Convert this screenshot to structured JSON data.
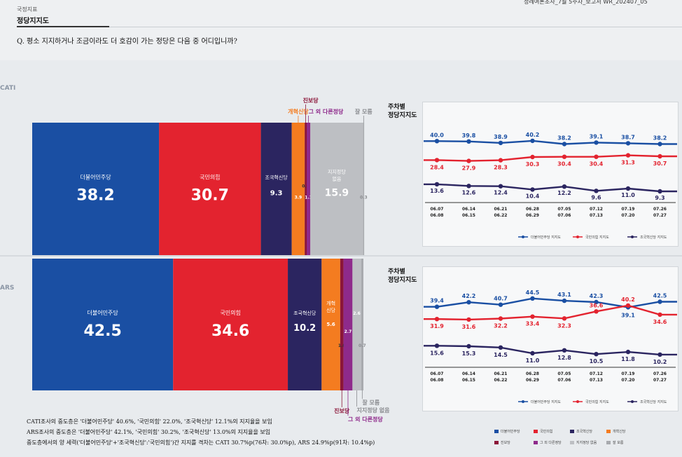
{
  "header": {
    "doc_ref": "정례여론조사_7월 5주차_보고서    WR_202407_05",
    "section_label": "국정지표",
    "section_title": "정당지지도",
    "question": "Q. 평소 지지하거나 조금이라도 더 호감이 가는 정당은 다음 중 어디입니까?"
  },
  "modes": {
    "cati": "CATI",
    "ars": "ARS"
  },
  "colors": {
    "democratic": "#1a4fa3",
    "ppp": "#e3232f",
    "rebuilding": "#2b2560",
    "reform": "#f47c20",
    "progressive": "#8b1538",
    "other": "#8e2a8b",
    "none": "#bdbfc3",
    "unknown": "#a8aaae"
  },
  "chart_data": [
    {
      "type": "bar",
      "stacked": true,
      "orientation": "horizontal-share",
      "mode": "CATI",
      "segments": [
        {
          "name": "더불어민주당",
          "value": 38.2,
          "color_key": "democratic"
        },
        {
          "name": "국민의힘",
          "value": 30.7,
          "color_key": "ppp"
        },
        {
          "name": "조국혁신당",
          "value": 9.3,
          "color_key": "rebuilding"
        },
        {
          "name": "개혁신당",
          "value": 3.9,
          "color_key": "reform"
        },
        {
          "name": "진보당",
          "value": 0.6,
          "color_key": "progressive"
        },
        {
          "name": "그 외 다른정당",
          "value": 1.1,
          "color_key": "other"
        },
        {
          "name": "지지정당 없음",
          "value": 15.9,
          "color_key": "none"
        },
        {
          "name": "잘 모름",
          "value": 0.3,
          "color_key": "unknown"
        }
      ]
    },
    {
      "type": "line",
      "title": "주차별 정당지지도",
      "mode": "CATI",
      "x": [
        "06.07\n06.08",
        "06.14\n06.15",
        "06.21\n06.22",
        "06.28\n06.29",
        "07.05\n07.06",
        "07.12\n07.13",
        "07.19\n07.20",
        "07.26\n07.27"
      ],
      "series": [
        {
          "name": "더불어민주당 지지도",
          "color_key": "democratic",
          "values": [
            40.0,
            39.8,
            38.9,
            40.2,
            38.2,
            39.1,
            38.7,
            38.2
          ]
        },
        {
          "name": "국민의힘 지지도",
          "color_key": "ppp",
          "values": [
            28.4,
            27.9,
            28.3,
            30.3,
            30.4,
            30.4,
            31.3,
            30.7
          ]
        },
        {
          "name": "조국혁신당 지지도",
          "color_key": "rebuilding",
          "values": [
            13.6,
            12.6,
            12.4,
            10.4,
            12.2,
            9.6,
            11.0,
            9.3
          ]
        }
      ]
    },
    {
      "type": "bar",
      "stacked": true,
      "orientation": "horizontal-share",
      "mode": "ARS",
      "segments": [
        {
          "name": "더불어민주당",
          "value": 42.5,
          "color_key": "democratic"
        },
        {
          "name": "국민의힘",
          "value": 34.6,
          "color_key": "ppp"
        },
        {
          "name": "조국혁신당",
          "value": 10.2,
          "color_key": "rebuilding"
        },
        {
          "name": "개혁신당",
          "value": 5.6,
          "color_key": "reform"
        },
        {
          "name": "진보당",
          "value": 1.0,
          "color_key": "progressive"
        },
        {
          "name": "그 외 다른정당",
          "value": 2.7,
          "color_key": "other"
        },
        {
          "name": "지지정당 없음",
          "value": 2.6,
          "color_key": "none"
        },
        {
          "name": "잘 모름",
          "value": 0.7,
          "color_key": "unknown"
        }
      ]
    },
    {
      "type": "line",
      "title": "주차별 정당지지도",
      "mode": "ARS",
      "x": [
        "06.07\n06.08",
        "06.14\n06.15",
        "06.21\n06.22",
        "06.28\n06.29",
        "07.05\n07.06",
        "07.12\n07.13",
        "07.19\n07.20",
        "07.26\n07.27"
      ],
      "series": [
        {
          "name": "더불어민주당 지지도",
          "color_key": "democratic",
          "values": [
            39.4,
            42.2,
            40.7,
            44.5,
            43.1,
            42.3,
            39.1,
            42.5
          ]
        },
        {
          "name": "국민의힘 지지도",
          "color_key": "ppp",
          "values": [
            31.9,
            31.6,
            32.2,
            33.4,
            32.3,
            36.6,
            40.2,
            34.6
          ]
        },
        {
          "name": "조국혁신당 지지도",
          "color_key": "rebuilding",
          "values": [
            15.6,
            15.3,
            14.5,
            11.0,
            12.8,
            10.5,
            11.8,
            10.2
          ]
        }
      ]
    }
  ],
  "notes": [
    "CATI조사의 중도층은 '더불어민주당' 40.6%, '국민의힘' 22.0%, '조국혁신당' 12.1%의 지지율을 보임",
    "ARS조사의 중도층은 '더불어민주당' 42.1%, '국민의힘' 30.2%, '조국혁신당' 13.0%의 지지율을 보임",
    "중도층에서의 양 세력('더불어민주당'+'조국혁신당':'국민의힘')간 지지를 격차는 CATI 30.7%p(76차: 30.0%p), ARS 24.9%p(91차: 10.4%p)"
  ],
  "legend": [
    {
      "label": "더불어민주당",
      "color_key": "democratic"
    },
    {
      "label": "국민의힘",
      "color_key": "ppp"
    },
    {
      "label": "조국혁신당",
      "color_key": "rebuilding"
    },
    {
      "label": "개혁신당",
      "color_key": "reform"
    },
    {
      "label": "진보당",
      "color_key": "progressive"
    },
    {
      "label": "그 외 다른정당",
      "color_key": "other"
    },
    {
      "label": "지지정당 없음",
      "color_key": "none"
    },
    {
      "label": "잘 모름",
      "color_key": "unknown"
    }
  ]
}
